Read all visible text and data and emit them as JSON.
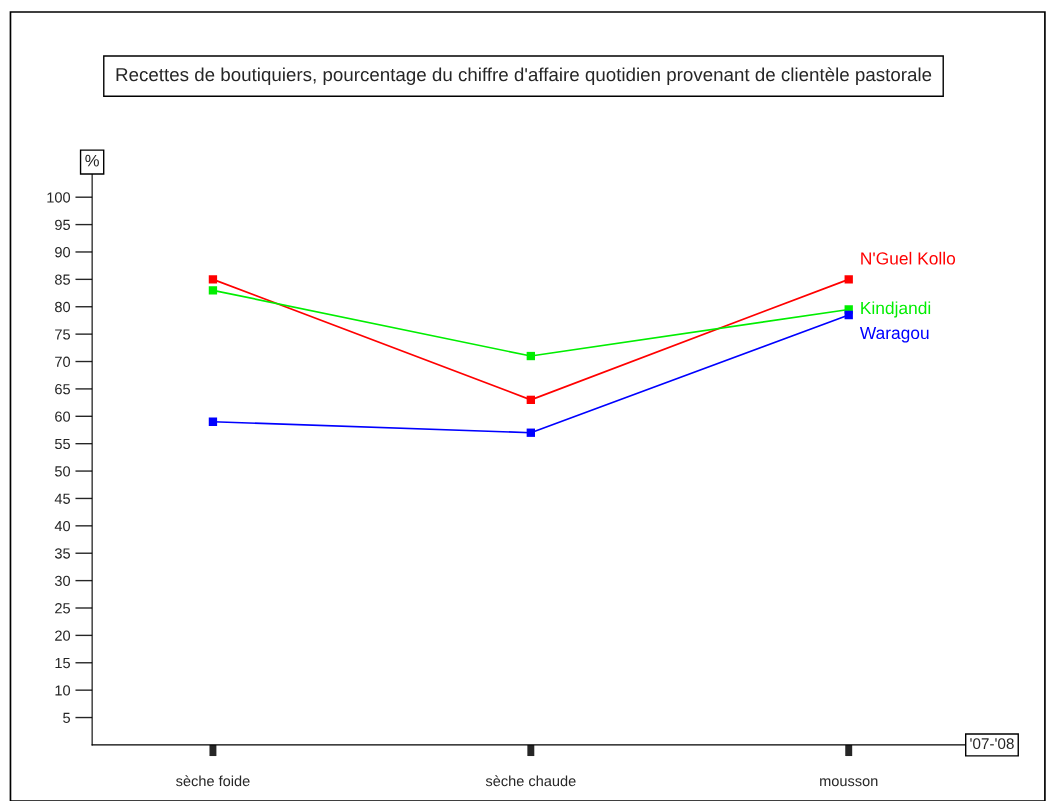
{
  "chart_data": {
    "type": "line",
    "title": "Recettes de boutiquiers, pourcentage du chiffre d'affaire quotidien provenant de clientèle pastorale",
    "xlabel": "'07-'08",
    "ylabel": "%",
    "categories": [
      "sèche foide",
      "sèche chaude",
      "mousson"
    ],
    "series": [
      {
        "name": "N'Guel Kollo",
        "color": "#ff0000",
        "values": [
          85,
          63,
          85
        ]
      },
      {
        "name": "Kindjandi",
        "color": "#00ee00",
        "values": [
          83,
          71,
          79.5
        ]
      },
      {
        "name": "Waragou",
        "color": "#0000ff",
        "values": [
          59,
          57,
          78.5
        ]
      }
    ],
    "ylim": [
      0,
      105
    ],
    "yticks": [
      5,
      10,
      15,
      20,
      25,
      30,
      35,
      40,
      45,
      50,
      55,
      60,
      65,
      70,
      75,
      80,
      85,
      90,
      95,
      100
    ],
    "grid": false,
    "legend": false,
    "marker": "square",
    "line_style": "solid"
  }
}
